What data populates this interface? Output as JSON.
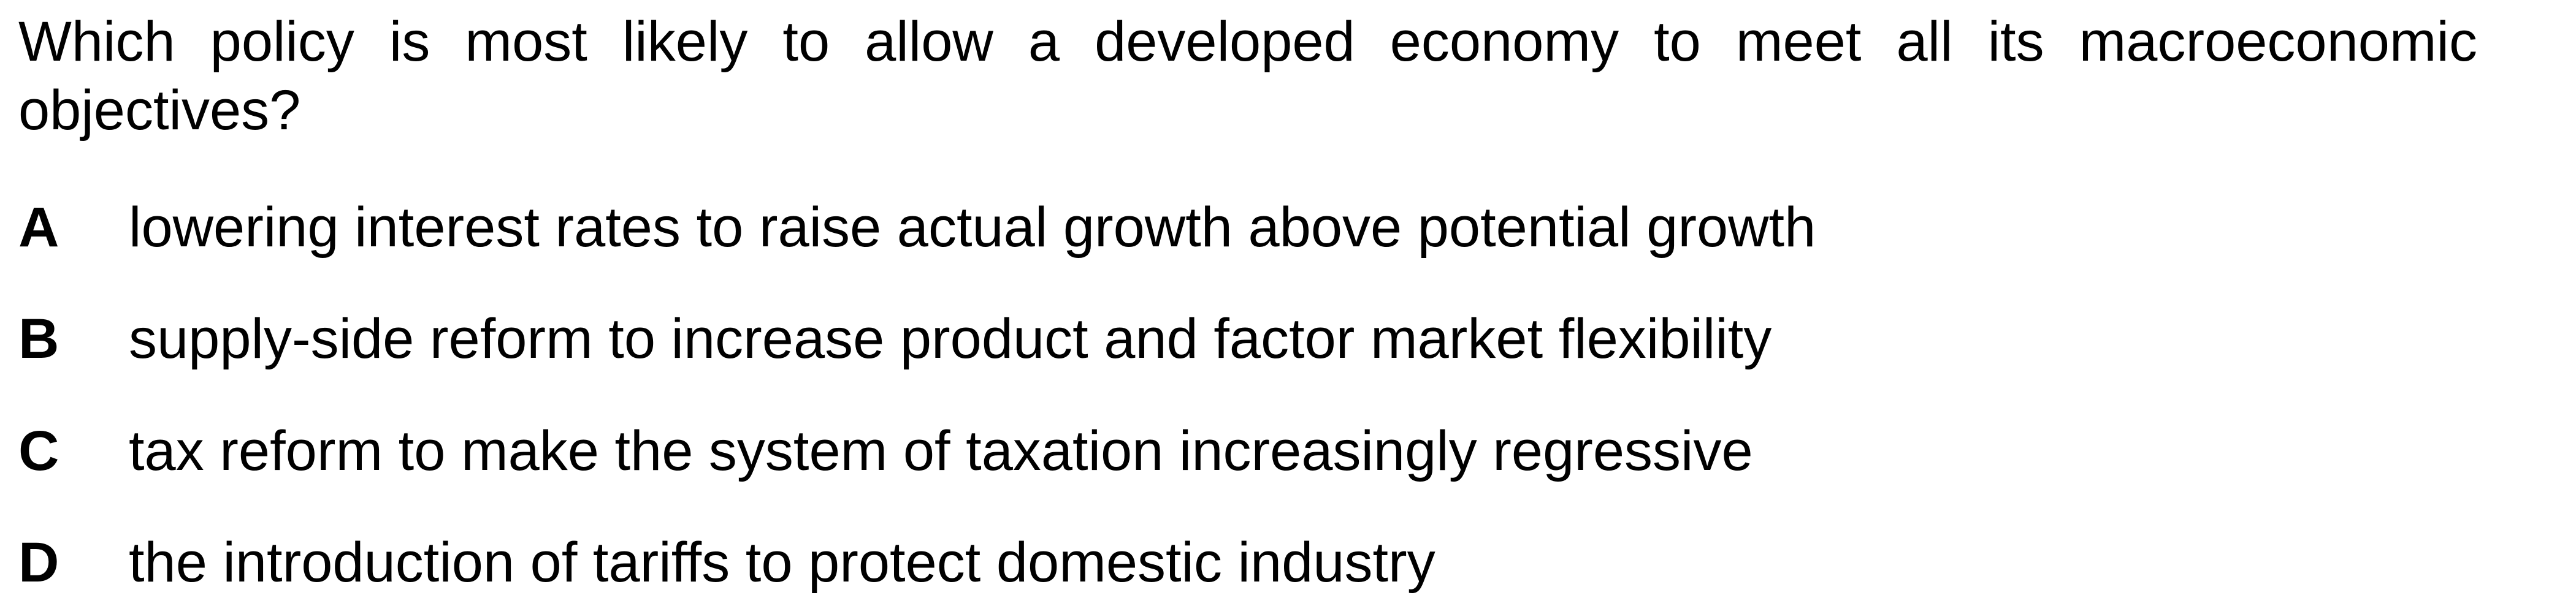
{
  "question": {
    "text": "Which policy is most likely to allow a developed economy to meet all its macroeconomic objectives?"
  },
  "options": [
    {
      "letter": "A",
      "text": "lowering interest rates to raise actual growth above potential growth"
    },
    {
      "letter": "B",
      "text": "supply-side reform to increase product and factor market flexibility"
    },
    {
      "letter": "C",
      "text": "tax reform to make the system of taxation increasingly regressive"
    },
    {
      "letter": "D",
      "text": "the introduction of tariffs to protect domestic industry"
    }
  ]
}
